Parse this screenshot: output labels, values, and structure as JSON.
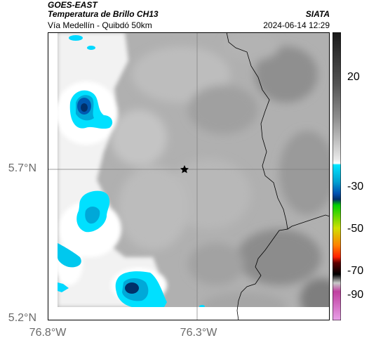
{
  "header": {
    "satellite": "GOES-EAST",
    "product": "Temperatura de Brillo CH13",
    "region": "Vía Medellín - Quibdó 50km",
    "organization": "SIATA",
    "timestamp": "2024-06-14 12:29"
  },
  "axes": {
    "lat_ticks": [
      "5.7°N",
      "5.2°N"
    ],
    "lon_ticks": [
      "76.8°W",
      "76.3°W"
    ]
  },
  "colorbar": {
    "labels": [
      "20",
      "-30",
      "-50",
      "-70",
      "-90"
    ],
    "stops": [
      "#1a1a1a",
      "#555555",
      "#909090",
      "#d0d0d0",
      "#ffffff",
      "#00e5ff",
      "#00a0d0",
      "#0050b0",
      "#00306a",
      "#00d000",
      "#d0e000",
      "#ff2000",
      "#000000",
      "#c8c8c8",
      "#c040a0",
      "#e080e0"
    ]
  },
  "marker": {
    "icon": "star-icon"
  }
}
